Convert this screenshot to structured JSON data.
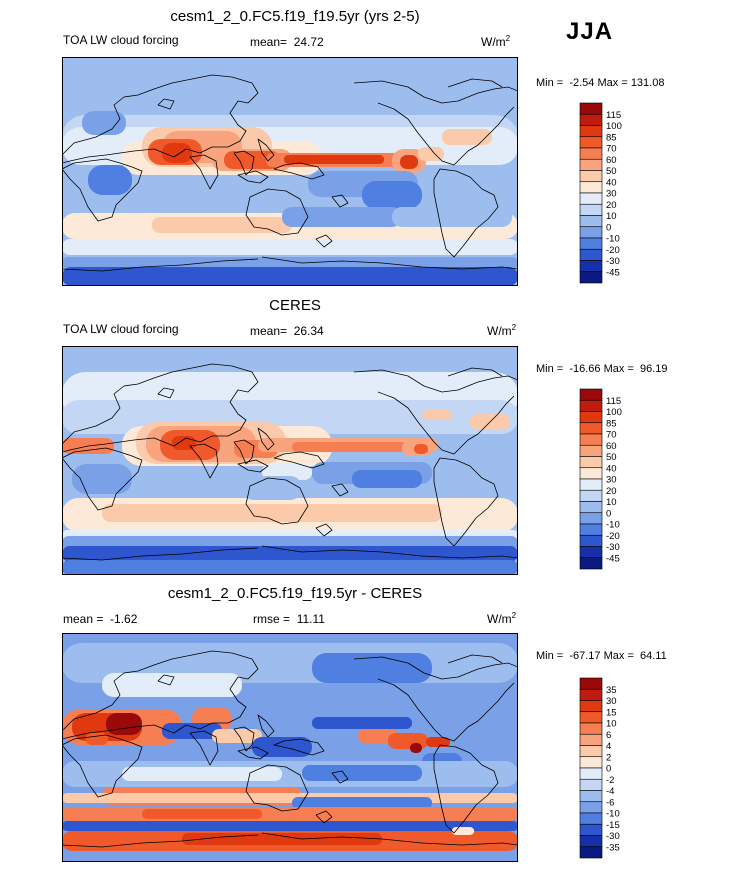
{
  "season": "JJA",
  "chart_data": [
    {
      "type": "heatmap",
      "title": "cesm1_2_0.FC5.f19_f19.5yr (yrs 2-5)",
      "left_label": "TOA LW cloud forcing",
      "stat_label": "mean=",
      "stat_value": "24.72",
      "units": "W/m",
      "units_sup": "2",
      "min_label": "Min =",
      "min_value": "-2.54",
      "max_label": "Max =",
      "max_value": "131.08",
      "colorbar": {
        "levels": [
          "115",
          "100",
          "85",
          "70",
          "60",
          "50",
          "40",
          "30",
          "20",
          "10",
          "0",
          "-10",
          "-20",
          "-30",
          "-45"
        ],
        "colors": [
          "#9b0a0a",
          "#bf1c0d",
          "#e0390f",
          "#f05a2a",
          "#f57e52",
          "#f8a47e",
          "#fbcaaa",
          "#fde9d8",
          "#e3edfa",
          "#c3d7f5",
          "#9ebdef",
          "#7aa0e8",
          "#4f7fe0",
          "#2e57cf",
          "#1530a8",
          "#0a1a82"
        ]
      }
    },
    {
      "type": "heatmap",
      "title": "CERES",
      "left_label": "TOA LW cloud forcing",
      "stat_label": "mean=",
      "stat_value": "26.34",
      "units": "W/m",
      "units_sup": "2",
      "min_label": "Min =",
      "min_value": "-16.66",
      "max_label": "Max =",
      "max_value": "96.19",
      "colorbar": {
        "levels": [
          "115",
          "100",
          "85",
          "70",
          "60",
          "50",
          "40",
          "30",
          "20",
          "10",
          "0",
          "-10",
          "-20",
          "-30",
          "-45"
        ],
        "colors": [
          "#9b0a0a",
          "#bf1c0d",
          "#e0390f",
          "#f05a2a",
          "#f57e52",
          "#f8a47e",
          "#fbcaaa",
          "#fde9d8",
          "#e3edfa",
          "#c3d7f5",
          "#9ebdef",
          "#7aa0e8",
          "#4f7fe0",
          "#2e57cf",
          "#1530a8",
          "#0a1a82"
        ]
      }
    },
    {
      "type": "heatmap",
      "title": "cesm1_2_0.FC5.f19_f19.5yr - CERES",
      "left_label": "mean =",
      "left_value": "-1.62",
      "stat_label": "rmse =",
      "stat_value": "11.11",
      "units": "W/m",
      "units_sup": "2",
      "min_label": "Min =",
      "min_value": "-67.17",
      "max_label": "Max =",
      "max_value": "64.11",
      "colorbar": {
        "levels": [
          "35",
          "30",
          "15",
          "10",
          "6",
          "4",
          "2",
          "0",
          "-2",
          "-4",
          "-6",
          "-10",
          "-15",
          "-30",
          "-35"
        ],
        "colors": [
          "#9b0a0a",
          "#bf1c0d",
          "#e0390f",
          "#f05a2a",
          "#f57e52",
          "#f8a47e",
          "#fbcaaa",
          "#fde9d8",
          "#e3edfa",
          "#c3d7f5",
          "#9ebdef",
          "#7aa0e8",
          "#4f7fe0",
          "#2e57cf",
          "#1530a8",
          "#0a1a82"
        ]
      }
    }
  ]
}
